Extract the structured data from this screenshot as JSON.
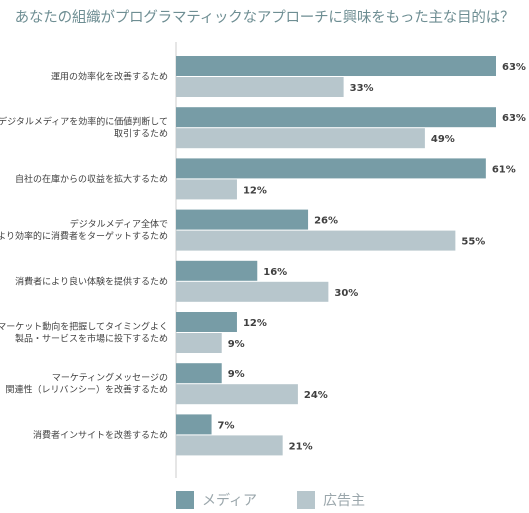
{
  "title": "あなたの組織がプログラマティックなアプローチに興味をもった主な目的は？",
  "colors": {
    "media": "#779ca6",
    "advertiser": "#b7c6cc",
    "axis": "#cccccc"
  },
  "chart_data": {
    "type": "bar",
    "orientation": "horizontal",
    "value_unit": "%",
    "xlim": [
      0,
      63
    ],
    "grid": false,
    "legend_position": "bottom",
    "categories": [
      "運用の効率化を改善するため",
      "デジタルメディアを効率的に価値判断して取引するため",
      "自社の在庫からの収益を拡大するため",
      "デジタルメディア全体でより効率的に消費者をターゲットするため",
      "消費者により良い体験を提供するため",
      "マーケット動向を把握してタイミングよく製品・サービスを市場に投下するため",
      "マーケティングメッセージの関連性（レリバンシー）を改善するため",
      "消費者インサイトを改善するため"
    ],
    "category_lines": [
      [
        "運用の効率化を改善するため"
      ],
      [
        "デジタルメディアを効率的に価値判断して",
        "取引するため"
      ],
      [
        "自社の在庫からの収益を拡大するため"
      ],
      [
        "デジタルメディア全体で",
        "より効率的に消費者をターゲットするため"
      ],
      [
        "消費者により良い体験を提供するため"
      ],
      [
        "マーケット動向を把握してタイミングよく",
        "製品・サービスを市場に投下するため"
      ],
      [
        "マーケティングメッセージの",
        "関連性（レリバンシー）を改善するため"
      ],
      [
        "消費者インサイトを改善するため"
      ]
    ],
    "series": [
      {
        "name": "メディア",
        "values": [
          63,
          63,
          61,
          26,
          16,
          12,
          9,
          7
        ]
      },
      {
        "name": "広告主",
        "values": [
          33,
          49,
          12,
          55,
          30,
          9,
          24,
          21
        ]
      }
    ]
  }
}
